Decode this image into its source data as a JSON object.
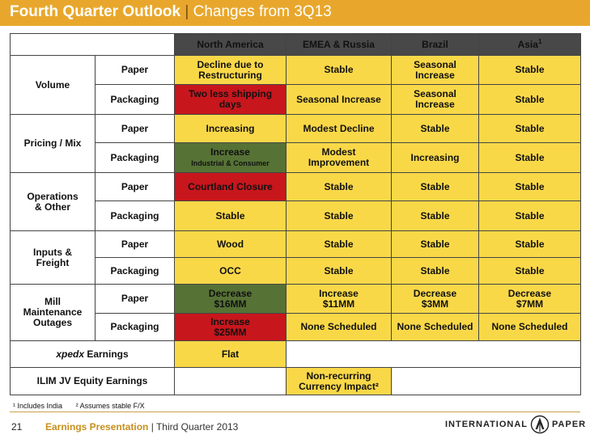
{
  "header": {
    "title": "Fourth Quarter Outlook",
    "separator": "|",
    "subtitle": "Changes from 3Q13"
  },
  "columns": [
    "North America",
    "EMEA & Russia",
    "Brazil",
    "Asia"
  ],
  "asia_footnote_marker": "1",
  "rows": {
    "volume": {
      "label": "Volume",
      "paper": {
        "label": "Paper",
        "na": [
          "Decline due to",
          "Restructuring"
        ],
        "emea": "Stable",
        "brazil": [
          "Seasonal",
          "Increase"
        ],
        "asia": "Stable"
      },
      "packaging": {
        "label": "Packaging",
        "na": [
          "Two less shipping",
          "days"
        ],
        "emea": "Seasonal Increase",
        "brazil": [
          "Seasonal",
          "Increase"
        ],
        "asia": "Stable"
      }
    },
    "pricing": {
      "label": "Pricing / Mix",
      "paper": {
        "label": "Paper",
        "na": "Increasing",
        "emea": "Modest Decline",
        "brazil": "Stable",
        "asia": "Stable"
      },
      "packaging": {
        "label": "Packaging",
        "na_main": "Increase",
        "na_detail": "Industrial & Consumer",
        "emea": [
          "Modest",
          "Improvement"
        ],
        "brazil": "Increasing",
        "asia": "Stable"
      }
    },
    "operations": {
      "label": [
        "Operations",
        "& Other"
      ],
      "paper": {
        "label": "Paper",
        "na": "Courtland Closure",
        "emea": "Stable",
        "brazil": "Stable",
        "asia": "Stable"
      },
      "packaging": {
        "label": "Packaging",
        "na": "Stable",
        "emea": "Stable",
        "brazil": "Stable",
        "asia": "Stable"
      }
    },
    "inputs": {
      "label": [
        "Inputs &",
        "Freight"
      ],
      "paper": {
        "label": "Paper",
        "na": "Wood",
        "emea": "Stable",
        "brazil": "Stable",
        "asia": "Stable"
      },
      "packaging": {
        "label": "Packaging",
        "na": "OCC",
        "emea": "Stable",
        "brazil": "Stable",
        "asia": "Stable"
      }
    },
    "mill": {
      "label": [
        "Mill",
        "Maintenance",
        "Outages"
      ],
      "paper": {
        "label": "Paper",
        "na": [
          "Decrease",
          "$16MM"
        ],
        "emea": [
          "Increase",
          "$11MM"
        ],
        "brazil": [
          "Decrease",
          "$3MM"
        ],
        "asia": [
          "Decrease",
          "$7MM"
        ]
      },
      "packaging": {
        "label": "Packaging",
        "na": [
          "Increase",
          "$25MM"
        ],
        "emea": "None Scheduled",
        "brazil": "None Scheduled",
        "asia": "None Scheduled"
      }
    },
    "xpedx": {
      "label_italic": "xpedx",
      "label_rest": " Earnings",
      "na": "Flat"
    },
    "ilim": {
      "label": "ILIM JV Equity Earnings",
      "emea": [
        "Non-recurring",
        "Currency Impact²"
      ]
    }
  },
  "footnotes": [
    "¹ Includes India",
    "² Assumes stable F/X"
  ],
  "footer": {
    "page": "21",
    "presentation": "Earnings Presentation",
    "separator": "|",
    "quarter": "Third Quarter 2013",
    "logo_left": "INTERNATIONAL",
    "logo_right": "PAPER"
  },
  "colors": {
    "yellow": "#f9d848",
    "red": "#c8161d",
    "green": "#567235",
    "header": "#484848",
    "accent": "#e8a72c"
  }
}
